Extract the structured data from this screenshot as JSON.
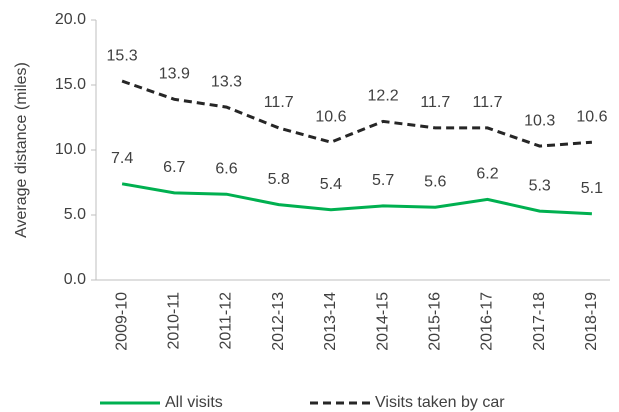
{
  "chart_data": {
    "type": "line",
    "y_axis_label": "Average distance (miles)",
    "categories": [
      "2009-10",
      "2010-11",
      "2011-12",
      "2012-13",
      "2013-14",
      "2014-15",
      "2015-16",
      "2016-17",
      "2017-18",
      "2018-19"
    ],
    "series": [
      {
        "name": "All visits",
        "color": "#00b050",
        "dashed": false,
        "values": [
          7.4,
          6.7,
          6.6,
          5.8,
          5.4,
          5.7,
          5.6,
          6.2,
          5.3,
          5.1
        ]
      },
      {
        "name": "Visits taken by car",
        "color": "#262626",
        "dashed": true,
        "values": [
          15.3,
          13.9,
          13.3,
          11.7,
          10.6,
          12.2,
          11.7,
          11.7,
          10.3,
          10.6
        ]
      }
    ],
    "ylim": [
      0,
      20
    ],
    "yticks": [
      {
        "value": 0,
        "label": "0.0"
      },
      {
        "value": 5,
        "label": "5.0"
      },
      {
        "value": 10,
        "label": "10.0"
      },
      {
        "value": 15,
        "label": "15.0"
      },
      {
        "value": 20,
        "label": "20.0"
      }
    ],
    "grid": false
  }
}
